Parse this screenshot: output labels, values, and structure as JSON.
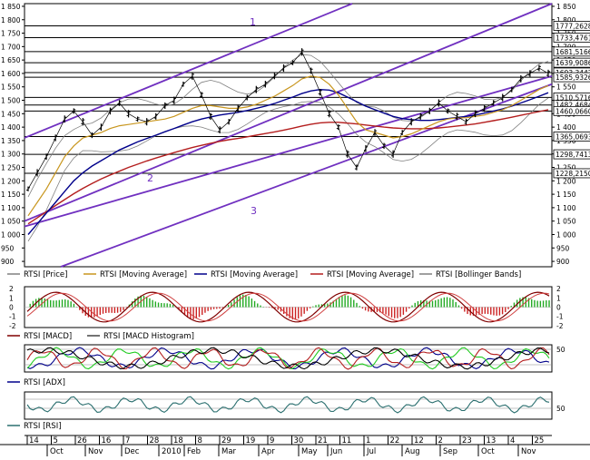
{
  "chart_data": {
    "type": "line",
    "price_panel": {
      "y_ticks": [
        "1 850",
        "1 800",
        "1 750",
        "1 700",
        "1 650",
        "1 600",
        "1 550",
        "1 500",
        "1 450",
        "1 400",
        "1 350",
        "1 300",
        "1 250",
        "1 200",
        "1 150",
        "1 100",
        "1 050",
        "1 000",
        "950",
        "900"
      ],
      "y_range": [
        880,
        1860
      ],
      "level_lines": [
        {
          "label": "1777,2628",
          "value": 1777.26
        },
        {
          "label": "1733,4761",
          "value": 1733.48
        },
        {
          "label": "1681,5166",
          "value": 1681.52
        },
        {
          "label": "1639,9086",
          "value": 1639.91
        },
        {
          "label": "1603,3442",
          "value": 1603.34
        },
        {
          "label": "1585,9326",
          "value": 1585.93
        },
        {
          "label": "1510,5716",
          "value": 1510.57
        },
        {
          "label": "1482,4684",
          "value": 1482.47
        },
        {
          "label": "1460,0660",
          "value": 1460.07
        },
        {
          "label": "1365,0693",
          "value": 1365.07
        },
        {
          "label": "1298,7413",
          "value": 1298.74
        },
        {
          "label": "1228,2150",
          "value": 1228.22
        }
      ],
      "channel_labels": [
        "1",
        "2",
        "3"
      ],
      "legend": [
        "RTSI [Price]",
        "RTSI [Moving Average]",
        "RTSI [Moving Average]",
        "RTSI [Moving Average]",
        "RTSI [Bollinger Bands]"
      ],
      "series": [
        {
          "name": "RTSI [Price]",
          "color": "#000000",
          "values": [
            1170,
            1230,
            1290,
            1360,
            1430,
            1460,
            1420,
            1370,
            1400,
            1460,
            1490,
            1450,
            1430,
            1420,
            1440,
            1480,
            1500,
            1560,
            1590,
            1520,
            1440,
            1390,
            1420,
            1470,
            1510,
            1540,
            1560,
            1590,
            1620,
            1640,
            1680,
            1610,
            1530,
            1450,
            1400,
            1300,
            1250,
            1320,
            1380,
            1330,
            1300,
            1380,
            1420,
            1440,
            1460,
            1490,
            1460,
            1440,
            1420,
            1450,
            1470,
            1490,
            1510,
            1540,
            1580,
            1600,
            1620,
            1600
          ]
        },
        {
          "name": "RTSI [Moving Average]",
          "color": "#c8961e",
          "values": [
            1070,
            1120,
            1170,
            1230,
            1290,
            1330,
            1360,
            1370,
            1380,
            1395,
            1405,
            1410,
            1415,
            1420,
            1425,
            1430,
            1440,
            1455,
            1470,
            1480,
            1480,
            1475,
            1470,
            1470,
            1475,
            1485,
            1500,
            1515,
            1535,
            1555,
            1580,
            1590,
            1585,
            1560,
            1520,
            1470,
            1420,
            1390,
            1380,
            1370,
            1360,
            1365,
            1375,
            1390,
            1405,
            1420,
            1430,
            1435,
            1435,
            1440,
            1445,
            1455,
            1465,
            1480,
            1500,
            1520,
            1540,
            1555
          ]
        },
        {
          "name": "RTSI [Moving Average]",
          "color": "#00008b",
          "values": [
            1000,
            1040,
            1080,
            1120,
            1160,
            1200,
            1230,
            1255,
            1275,
            1295,
            1315,
            1330,
            1345,
            1358,
            1370,
            1383,
            1395,
            1408,
            1420,
            1430,
            1438,
            1445,
            1450,
            1455,
            1462,
            1470,
            1478,
            1488,
            1500,
            1512,
            1525,
            1535,
            1540,
            1538,
            1528,
            1512,
            1495,
            1478,
            1465,
            1452,
            1440,
            1432,
            1428,
            1425,
            1425,
            1428,
            1432,
            1436,
            1440,
            1445,
            1452,
            1460,
            1468,
            1478,
            1490,
            1502,
            1515,
            1528
          ]
        },
        {
          "name": "RTSI [Moving Average]",
          "color": "#b41e1e",
          "values": [
            1040,
            1062,
            1085,
            1108,
            1130,
            1152,
            1172,
            1190,
            1207,
            1222,
            1236,
            1250,
            1262,
            1274,
            1285,
            1295,
            1305,
            1315,
            1324,
            1332,
            1340,
            1347,
            1353,
            1358,
            1364,
            1370,
            1376,
            1382,
            1389,
            1396,
            1404,
            1411,
            1416,
            1418,
            1418,
            1415,
            1412,
            1408,
            1404,
            1400,
            1397,
            1395,
            1394,
            1394,
            1395,
            1397,
            1400,
            1404,
            1408,
            1412,
            1418,
            1424,
            1430,
            1437,
            1444,
            1451,
            1458,
            1465
          ]
        }
      ]
    },
    "macd_panel": {
      "y_ticks": [
        "2",
        "1",
        "0",
        "-1",
        "-2"
      ],
      "y_range": [
        -2.2,
        2.2
      ],
      "legend": [
        "RTSI [MACD]",
        "RTSI [MACD Histogram]"
      ]
    },
    "adx_panel": {
      "y_ticks": [
        "50"
      ],
      "legend": [
        "RTSI [ADX]"
      ]
    },
    "rsi_panel": {
      "y_ticks": [
        "50"
      ],
      "legend": [
        "RTSI [RSI]"
      ]
    },
    "x_axis": {
      "day_ticks": [
        "14",
        "5",
        "26",
        "16",
        "7",
        "28",
        "18",
        "8",
        "29",
        "19",
        "9",
        "30",
        "21",
        "11",
        "1",
        "22",
        "12",
        "2",
        "23",
        "13",
        "4",
        "25"
      ],
      "month_labels": [
        "Oct",
        "Nov",
        "Dec",
        "2010",
        "Feb",
        "Mar",
        "Apr",
        "May",
        "Jun",
        "Jul",
        "Aug",
        "Sep",
        "Oct",
        "Nov"
      ]
    },
    "colors": {
      "price": "#000000",
      "ma_short": "#c8961e",
      "ma_mid": "#00008b",
      "ma_long": "#b41e1e",
      "bollinger": "#808080",
      "channel": "#7030c0",
      "macd": "#800000",
      "signal": "#8b0000",
      "hist_pos": "#22aa22",
      "hist_neg": "#cc2222",
      "adx_plus": "#00008b",
      "adx_green": "#22cc22",
      "rsi": "#2a6f6f"
    }
  }
}
